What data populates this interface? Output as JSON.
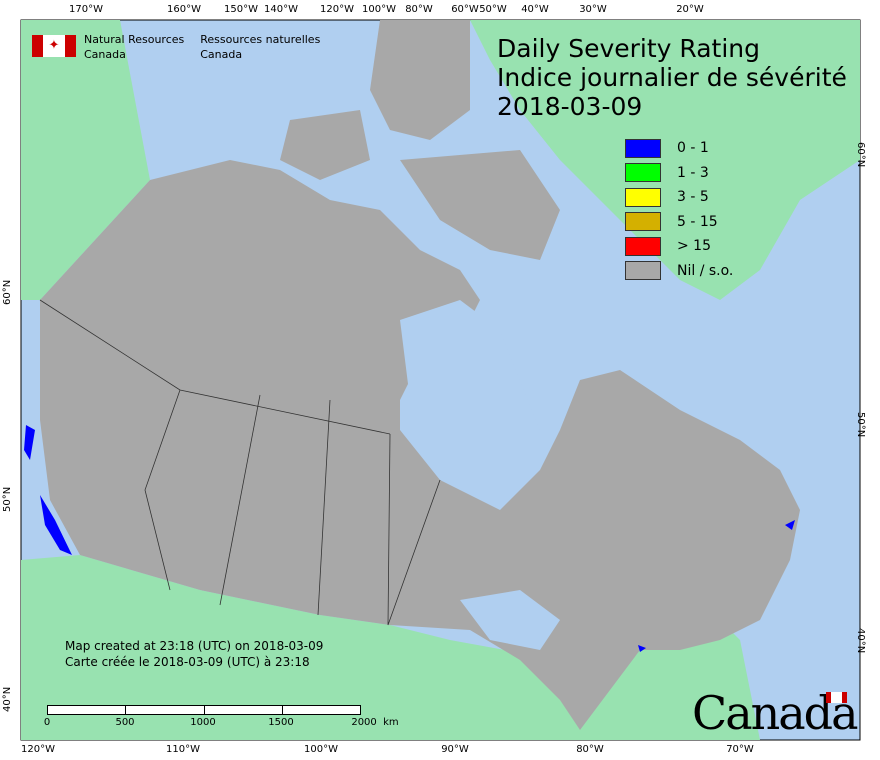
{
  "header": {
    "agency_en": [
      "Natural Resources",
      "Canada"
    ],
    "agency_fr": [
      "Ressources naturelles",
      "Canada"
    ],
    "title_en": "Daily Severity Rating",
    "title_fr": "Indice journalier de sévérité",
    "date": "2018-03-09"
  },
  "legend": [
    {
      "label": "0 - 1",
      "color": "#0000ff"
    },
    {
      "label": "1 - 3",
      "color": "#00ff00"
    },
    {
      "label": "3 - 5",
      "color": "#ffff00"
    },
    {
      "label": "5 - 15",
      "color": "#d4b000"
    },
    {
      "label": "> 15",
      "color": "#ff0000"
    },
    {
      "label": "Nil / s.o.",
      "color": "#a8a8a8"
    }
  ],
  "axes": {
    "top": [
      "170°W",
      "160°W",
      "150°W",
      "140°W",
      "120°W",
      "100°W",
      "80°W",
      "60°W",
      "50°W",
      "40°W",
      "30°W",
      "20°W"
    ],
    "bottom": [
      "120°W",
      "110°W",
      "100°W",
      "90°W",
      "80°W",
      "70°W"
    ],
    "left": [
      "60°N",
      "50°N",
      "40°N"
    ],
    "right": [
      "60°N",
      "50°N",
      "40°N"
    ]
  },
  "footer": {
    "created_en": "Map created at 23:18 (UTC) on 2018-03-09",
    "created_fr": "Carte créée le 2018-03-09 (UTC) à 23:18",
    "scale_labels": [
      "0",
      "500",
      "1000",
      "1500",
      "2000  km"
    ],
    "wordmark": "Canada"
  },
  "colors": {
    "ocean": "#b0cff0",
    "land_other": "#98e2b0",
    "canada_nil": "#a8a8a8",
    "severity_low": "#0000ff"
  }
}
